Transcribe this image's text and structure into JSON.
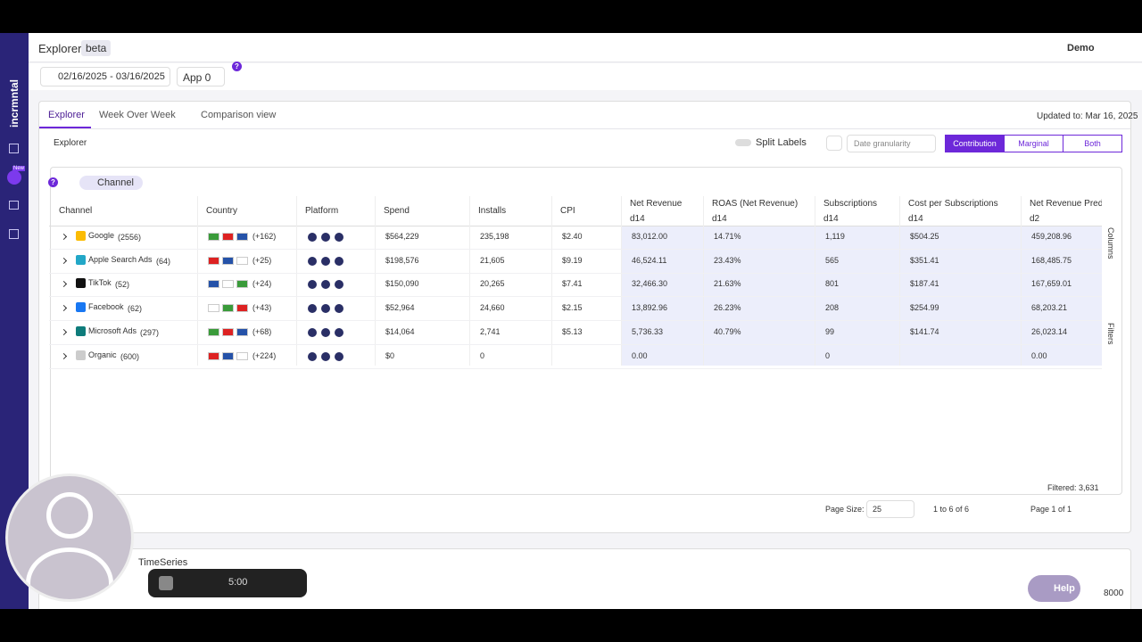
{
  "brand": "incrmntal",
  "header": {
    "title": "Explorer",
    "badge": "beta",
    "user": "Demo"
  },
  "sidebar": {
    "new_badge": "New"
  },
  "filters": {
    "date_range": "02/16/2025 - 03/16/2025",
    "app": "App 0"
  },
  "tabs": [
    "Explorer",
    "Week Over Week",
    "Comparison view"
  ],
  "updated": "Updated to: Mar 16, 2025",
  "toolbar": {
    "section": "Explorer",
    "split_labels": "Split Labels",
    "granularity": "Date granularity",
    "modes": [
      "Contribution",
      "Marginal",
      "Both"
    ]
  },
  "chip": "Channel",
  "table": {
    "columns": [
      {
        "label": "Channel"
      },
      {
        "label": "Country"
      },
      {
        "label": "Platform"
      },
      {
        "label": "Spend"
      },
      {
        "label": "Installs"
      },
      {
        "label": "CPI"
      },
      {
        "label": "Net Revenue",
        "sub": "d14"
      },
      {
        "label": "ROAS (Net Revenue)",
        "sub": "d14"
      },
      {
        "label": "Subscriptions",
        "sub": "d14"
      },
      {
        "label": "Cost per Subscriptions",
        "sub": "d14"
      },
      {
        "label": "Net Revenue Predi",
        "sub": "d2"
      }
    ],
    "rows": [
      {
        "channel": "Google",
        "count": "(2556)",
        "more": "(+162)",
        "cells": [
          "$564,229",
          "235,198",
          "$2.40",
          "83,012.00",
          "14.71%",
          "1,119",
          "$504.25",
          "459,208.96"
        ]
      },
      {
        "channel": "Apple Search Ads",
        "count": "(64)",
        "more": "(+25)",
        "cells": [
          "$198,576",
          "21,605",
          "$9.19",
          "46,524.11",
          "23.43%",
          "565",
          "$351.41",
          "168,485.75"
        ]
      },
      {
        "channel": "TikTok",
        "count": "(52)",
        "more": "(+24)",
        "cells": [
          "$150,090",
          "20,265",
          "$7.41",
          "32,466.30",
          "21.63%",
          "801",
          "$187.41",
          "167,659.01"
        ]
      },
      {
        "channel": "Facebook",
        "count": "(62)",
        "more": "(+43)",
        "cells": [
          "$52,964",
          "24,660",
          "$2.15",
          "13,892.96",
          "26.23%",
          "208",
          "$254.99",
          "68,203.21"
        ]
      },
      {
        "channel": "Microsoft Ads",
        "count": "(297)",
        "more": "(+68)",
        "cells": [
          "$14,064",
          "2,741",
          "$5.13",
          "5,736.33",
          "40.79%",
          "99",
          "$141.74",
          "26,023.14"
        ]
      },
      {
        "channel": "Organic",
        "count": "(600)",
        "more": "(+224)",
        "cells": [
          "$0",
          "0",
          null,
          "0.00",
          null,
          "0",
          null,
          "0.00"
        ]
      }
    ]
  },
  "side_tabs": [
    "Columns",
    "Filters"
  ],
  "footer": {
    "filtered": "Filtered: 3,631",
    "page_size_label": "Page Size:",
    "page_size": "25",
    "range": "1 to 6 of 6",
    "page": "Page 1 of 1"
  },
  "timeseries": {
    "title": "TimeSeries",
    "axis_label": "8000"
  },
  "recorder": {
    "time": "5:00"
  },
  "help": "Help"
}
